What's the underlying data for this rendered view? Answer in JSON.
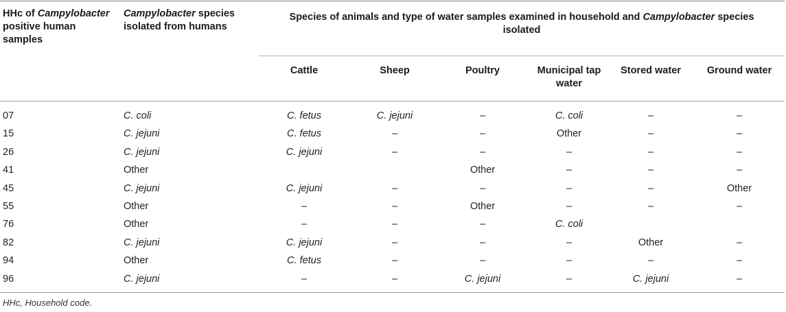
{
  "headers": {
    "col1_pre": "HHc of ",
    "col1_italic": "Campylobacter",
    "col1_line2": "positive human",
    "col1_line3": "samples",
    "col2_italic": "Campylobacter",
    "col2_post": " species",
    "col2_line2": "isolated from humans",
    "group_pre": "Species of animals and type of water samples examined in household and ",
    "group_italic": "Campylobacter",
    "group_post": " species",
    "group_line2": "isolated",
    "sub": [
      "Cattle",
      "Sheep",
      "Poultry",
      "Municipal tap",
      "Stored water",
      "Ground water"
    ],
    "sub_line2": [
      "",
      "",
      "",
      "water",
      "",
      ""
    ]
  },
  "rows": [
    {
      "hhc": "07",
      "human": "C. coli",
      "cattle": "C. fetus",
      "sheep": "C. jejuni",
      "poultry": "–",
      "tap": "C. coli",
      "stored": "–",
      "ground": "–"
    },
    {
      "hhc": "15",
      "human": "C. jejuni",
      "cattle": "C. fetus",
      "sheep": "–",
      "poultry": "–",
      "tap": "Other",
      "stored": "–",
      "ground": "–"
    },
    {
      "hhc": "26",
      "human": "C. jejuni",
      "cattle": "C. jejuni",
      "sheep": "–",
      "poultry": "–",
      "tap": "–",
      "stored": "–",
      "ground": "–"
    },
    {
      "hhc": "41",
      "human": "Other",
      "cattle": "",
      "sheep": "",
      "poultry": "Other",
      "tap": "–",
      "stored": "–",
      "ground": "–"
    },
    {
      "hhc": "45",
      "human": "C. jejuni",
      "cattle": "C. jejuni",
      "sheep": "–",
      "poultry": "–",
      "tap": "–",
      "stored": "–",
      "ground": "Other"
    },
    {
      "hhc": "55",
      "human": "Other",
      "cattle": "–",
      "sheep": "–",
      "poultry": "Other",
      "tap": "–",
      "stored": "–",
      "ground": "–"
    },
    {
      "hhc": "76",
      "human": "Other",
      "cattle": "–",
      "sheep": "–",
      "poultry": "–",
      "tap": "C. coli",
      "stored": "",
      "ground": ""
    },
    {
      "hhc": "82",
      "human": "C. jejuni",
      "cattle": "C. jejuni",
      "sheep": "–",
      "poultry": "–",
      "tap": "–",
      "stored": "Other",
      "ground": "–"
    },
    {
      "hhc": "94",
      "human": "Other",
      "cattle": "C. fetus",
      "sheep": "–",
      "poultry": "–",
      "tap": "–",
      "stored": "–",
      "ground": "–"
    },
    {
      "hhc": "96",
      "human": "C. jejuni",
      "cattle": "–",
      "sheep": "–",
      "poultry": "C. jejuni",
      "tap": "–",
      "stored": "C. jejuni",
      "ground": "–"
    }
  ],
  "footnote": "HHc, Household code."
}
